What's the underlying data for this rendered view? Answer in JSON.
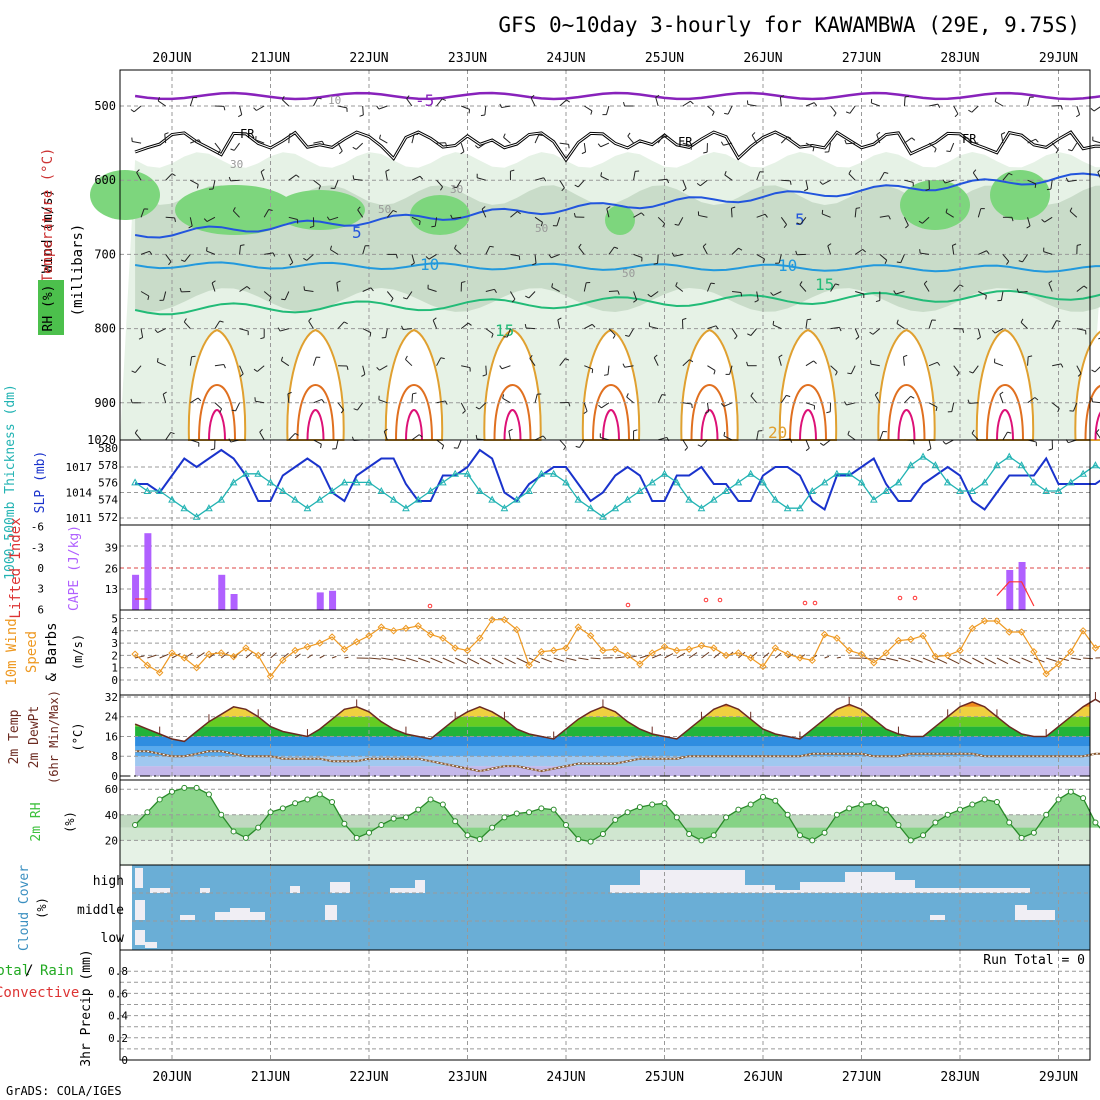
{
  "title": "GFS 0~10day 3-hourly for KAWAMBWA (29E, 9.75S)",
  "footer": "GrADS: COLA/IGES",
  "dates": [
    "20JUN",
    "21JUN",
    "22JUN",
    "23JUN",
    "24JUN",
    "25JUN",
    "26JUN",
    "27JUN",
    "28JUN",
    "29JUN"
  ],
  "colors": {
    "frame": "#000000",
    "grid": "#999999",
    "slp": "#1a33cc",
    "thick": "#22b3b3",
    "cape": "#b060ff",
    "li": "#ff3333",
    "wind": "#ee9922",
    "temp": "#6b2a20",
    "rh": "#3cc03c",
    "cloud": "#6aaed6",
    "cloud_white": "#f0eef4"
  },
  "panels": {
    "profile": {
      "label_wind": "Wind (m/s)",
      "label_temp": "Temperature (°C)",
      "label_rh": "RH (%)",
      "label_mb": "(millibars)",
      "y_ticks": [
        "500",
        "600",
        "700",
        "800",
        "900",
        "1020"
      ],
      "contour_labels": {
        "fr": "FR",
        "t_minus5": "-5",
        "t5": "5",
        "t10": "10",
        "t15": "15",
        "t20": "20",
        "rh30": "30",
        "rh50": "50",
        "rh10": "10"
      }
    },
    "thick_slp": {
      "label_thick": "1000-500mb Thickness (dm)",
      "label_slp": "SLP (mb)",
      "left_ticks": [
        "580",
        "578",
        "576",
        "574",
        "572"
      ],
      "right_ticks": [
        "1017",
        "1014",
        "1011"
      ]
    },
    "cape_li": {
      "label_li": "Lifted Index",
      "label_cape": "CAPE (J/kg)",
      "left_ticks": [
        "-6",
        "-3",
        "0",
        "3",
        "6"
      ],
      "right_ticks": [
        "39",
        "26",
        "13"
      ]
    },
    "wind10": {
      "label_main": "10m Wind",
      "label_sub1": "Speed",
      "label_sub2": "& Barbs",
      "unit": "(m/s)",
      "ticks": [
        "5",
        "4",
        "3",
        "2",
        "1",
        "0"
      ]
    },
    "temp2m": {
      "label1": "2m Temp",
      "label2": "2m DewPt",
      "label3": "(6hr Min/Max)",
      "unit": "(°C)",
      "ticks": [
        "32",
        "24",
        "16",
        "8",
        "0"
      ]
    },
    "rh2m": {
      "label": "2m RH",
      "unit": "(%)",
      "ticks": [
        "60",
        "40",
        "20"
      ]
    },
    "cloud": {
      "label": "Cloud Cover",
      "unit": "(%)",
      "levels": [
        "high",
        "middle",
        "low"
      ]
    },
    "precip": {
      "label_total": "Total",
      "label_sep": "/",
      "label_rain": "Rain",
      "label_conv": "Convective",
      "label_axis": "3hr Precip (mm)",
      "ticks": [
        "0.8",
        "0.6",
        "0.4",
        "0.2",
        "0"
      ],
      "run_total": "Run Total = 0"
    }
  },
  "chart_data": [
    {
      "type": "line",
      "name": "thickness_slp",
      "x_start": "19JUN 15Z",
      "x_step_hours": 3,
      "slp_mb": [
        1015,
        1015,
        1014,
        1016,
        1018,
        1017,
        1018,
        1019,
        1018,
        1016,
        1013,
        1013,
        1016,
        1017,
        1018,
        1017,
        1014,
        1013,
        1016,
        1017,
        1018,
        1018,
        1015,
        1013,
        1013,
        1016,
        1016,
        1017,
        1019,
        1018,
        1014,
        1013,
        1015,
        1016,
        1017,
        1017,
        1015,
        1013,
        1014,
        1016,
        1017,
        1016,
        1013,
        1013,
        1016,
        1016,
        1017,
        1015,
        1015,
        1013,
        1013,
        1016,
        1017,
        1017,
        1016,
        1013,
        1012,
        1016,
        1016,
        1017,
        1018,
        1015,
        1013,
        1013,
        1015,
        1016,
        1017,
        1016,
        1013,
        1012,
        1014,
        1016,
        1016,
        1016,
        1018,
        1015,
        1015,
        1015,
        1015,
        1016
      ],
      "thickness_dm": [
        576,
        575,
        575,
        574,
        573,
        572,
        573,
        574,
        576,
        577,
        577,
        576,
        575,
        574,
        573,
        574,
        575,
        576,
        576,
        576,
        575,
        574,
        573,
        574,
        575,
        576,
        577,
        577,
        575,
        574,
        573,
        574,
        575,
        577,
        577,
        576,
        574,
        573,
        572,
        573,
        574,
        575,
        576,
        577,
        576,
        574,
        573,
        574,
        575,
        576,
        577,
        576,
        574,
        573,
        573,
        575,
        576,
        577,
        577,
        576,
        574,
        575,
        576,
        578,
        579,
        578,
        576,
        575,
        575,
        576,
        578,
        579,
        578,
        576,
        575,
        575,
        576,
        577,
        578,
        577
      ]
    },
    {
      "type": "bar",
      "name": "cape_li",
      "cape_jkg_bars": [
        {
          "x": "19JUN 15Z",
          "v": 22
        },
        {
          "x": "19JUN 18Z",
          "v": 48
        },
        {
          "x": "20JUN 12Z",
          "v": 22
        },
        {
          "x": "20JUN 15Z",
          "v": 10
        },
        {
          "x": "21JUN 12Z",
          "v": 11
        },
        {
          "x": "21JUN 15Z",
          "v": 12
        },
        {
          "x": "28JUN 12Z",
          "v": 25
        },
        {
          "x": "28JUN 15Z",
          "v": 30
        }
      ],
      "lifted_index": [
        {
          "x": "19JUN 15Z",
          "v": 4.5
        },
        {
          "x": "19JUN 18Z",
          "v": 4.5
        },
        {
          "x": "28JUN 09Z",
          "v": 4
        },
        {
          "x": "28JUN 12Z",
          "v": 2
        },
        {
          "x": "28JUN 15Z",
          "v": 2
        },
        {
          "x": "28JUN 18Z",
          "v": 5.5
        }
      ],
      "li_zero_line": 0
    },
    {
      "type": "line",
      "name": "wind10m_speed",
      "unit": "m/s",
      "values": [
        2.1,
        1.2,
        0.6,
        2.2,
        1.8,
        1.0,
        2.1,
        2.2,
        1.9,
        2.6,
        2.0,
        0.3,
        1.6,
        2.4,
        2.7,
        3.0,
        3.5,
        2.5,
        3.1,
        3.6,
        4.3,
        4.0,
        4.2,
        4.4,
        3.7,
        3.4,
        2.6,
        2.4,
        3.4,
        4.9,
        4.9,
        4.1,
        1.2,
        2.3,
        2.4,
        2.6,
        4.3,
        3.6,
        2.4,
        2.5,
        2.0,
        1.3,
        2.2,
        2.7,
        2.4,
        2.5,
        2.8,
        2.6,
        2.0,
        2.2,
        1.8,
        1.1,
        2.6,
        2.1,
        1.8,
        1.6,
        3.7,
        3.4,
        2.4,
        2.1,
        1.4,
        2.2,
        3.2,
        3.3,
        3.6,
        1.9,
        2.0,
        2.4,
        4.2,
        4.8,
        4.8,
        3.9,
        3.9,
        2.3,
        0.5,
        1.3,
        2.3,
        4.0,
        2.6,
        3.0
      ]
    },
    {
      "type": "area",
      "name": "temp2m",
      "unit": "°C",
      "temp": [
        21,
        19,
        17,
        15,
        14,
        18,
        22,
        25,
        28,
        27,
        24,
        20,
        18,
        17,
        16,
        19,
        23,
        27,
        28,
        26,
        22,
        19,
        17,
        16,
        15,
        19,
        23,
        26,
        28,
        26,
        23,
        19,
        17,
        16,
        15,
        19,
        23,
        26,
        28,
        26,
        22,
        19,
        17,
        16,
        15,
        19,
        23,
        27,
        29,
        27,
        23,
        19,
        17,
        16,
        15,
        19,
        23,
        27,
        29,
        27,
        23,
        19,
        17,
        16,
        16,
        20,
        24,
        28,
        30,
        28,
        24,
        20,
        17,
        16,
        16,
        20,
        24,
        28,
        31,
        28
      ],
      "dewpoint": [
        10,
        10,
        9,
        8,
        8,
        9,
        10,
        10,
        9,
        8,
        8,
        8,
        7,
        7,
        7,
        7,
        6,
        6,
        6,
        7,
        7,
        7,
        7,
        7,
        6,
        5,
        4,
        3,
        2,
        3,
        4,
        4,
        3,
        2,
        3,
        4,
        5,
        5,
        5,
        5,
        6,
        7,
        7,
        7,
        7,
        8,
        8,
        8,
        8,
        8,
        8,
        8,
        8,
        8,
        8,
        9,
        9,
        9,
        9,
        9,
        8,
        8,
        8,
        9,
        9,
        9,
        9,
        9,
        9,
        8,
        8,
        8,
        8,
        8,
        8,
        8,
        8,
        8,
        9,
        9
      ]
    },
    {
      "type": "area",
      "name": "rh2m",
      "unit": "%",
      "values": [
        32,
        42,
        52,
        58,
        61,
        61,
        56,
        40,
        27,
        22,
        30,
        42,
        45,
        49,
        52,
        56,
        50,
        33,
        22,
        26,
        32,
        37,
        38,
        44,
        52,
        48,
        35,
        24,
        21,
        30,
        38,
        41,
        42,
        45,
        44,
        32,
        21,
        19,
        25,
        36,
        42,
        46,
        48,
        49,
        38,
        25,
        20,
        24,
        38,
        44,
        48,
        54,
        51,
        40,
        24,
        20,
        26,
        40,
        45,
        48,
        49,
        44,
        32,
        20,
        24,
        34,
        40,
        44,
        48,
        52,
        50,
        34,
        22,
        26,
        40,
        52,
        58,
        53,
        34,
        23
      ]
    }
  ]
}
